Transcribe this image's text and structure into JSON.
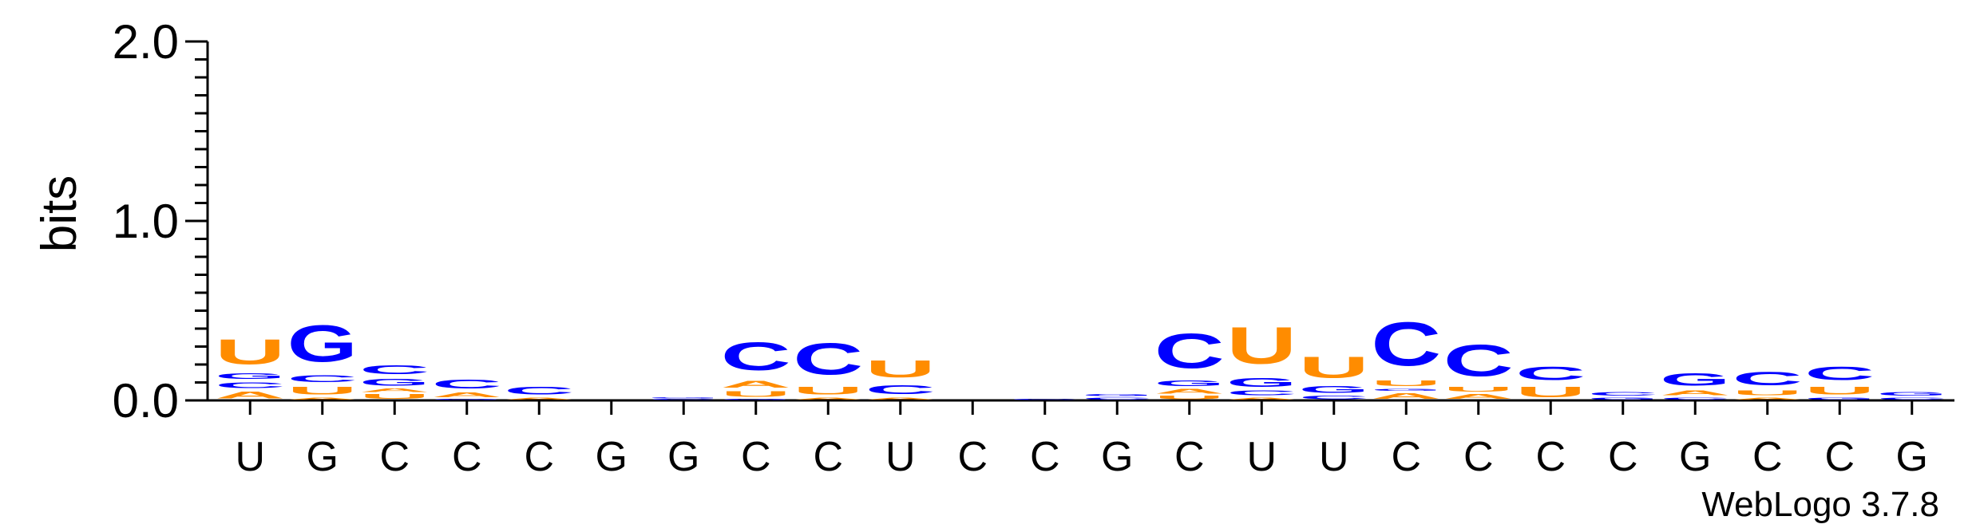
{
  "chart_data": {
    "type": "sequence-logo",
    "ylabel": "bits",
    "ylim": [
      0,
      2.0
    ],
    "yticks": [
      "0.0",
      "1.0",
      "2.0"
    ],
    "colors": {
      "U": "#ff8c00",
      "A": "#ff8c00",
      "C": "#0000ff",
      "G": "#0000ff"
    },
    "positions": [
      {
        "label": "U",
        "stack": [
          [
            "A",
            0.06
          ],
          [
            "C",
            0.05
          ],
          [
            "G",
            0.05
          ],
          [
            "U",
            0.22
          ]
        ]
      },
      {
        "label": "G",
        "stack": [
          [
            "A",
            0.02
          ],
          [
            "U",
            0.07
          ],
          [
            "C",
            0.06
          ],
          [
            "G",
            0.33
          ]
        ]
      },
      {
        "label": "C",
        "stack": [
          [
            "U",
            0.04
          ],
          [
            "A",
            0.03
          ],
          [
            "G",
            0.06
          ],
          [
            "C",
            0.08
          ]
        ]
      },
      {
        "label": "C",
        "stack": [
          [
            "G",
            0.01
          ],
          [
            "A",
            0.04
          ],
          [
            "C",
            0.08
          ]
        ]
      },
      {
        "label": "C",
        "stack": [
          [
            "A",
            0.02
          ],
          [
            "C",
            0.07
          ]
        ]
      },
      {
        "label": "G",
        "stack": []
      },
      {
        "label": "G",
        "stack": [
          [
            "C",
            0.01
          ],
          [
            "G",
            0.01
          ]
        ]
      },
      {
        "label": "C",
        "stack": [
          [
            "G",
            0.01
          ],
          [
            "U",
            0.05
          ],
          [
            "A",
            0.06
          ],
          [
            "C",
            0.25
          ]
        ]
      },
      {
        "label": "C",
        "stack": [
          [
            "A",
            0.02
          ],
          [
            "U",
            0.07
          ],
          [
            "C",
            0.28
          ]
        ]
      },
      {
        "label": "U",
        "stack": [
          [
            "A",
            0.02
          ],
          [
            "C",
            0.08
          ],
          [
            "U",
            0.15
          ]
        ]
      },
      {
        "label": "C",
        "stack": []
      },
      {
        "label": "C",
        "stack": [
          [
            "C",
            0.01
          ]
        ]
      },
      {
        "label": "G",
        "stack": [
          [
            "C",
            0.02
          ],
          [
            "G",
            0.02
          ]
        ]
      },
      {
        "label": "C",
        "stack": [
          [
            "U",
            0.03
          ],
          [
            "A",
            0.04
          ],
          [
            "G",
            0.05
          ],
          [
            "C",
            0.31
          ]
        ]
      },
      {
        "label": "U",
        "stack": [
          [
            "A",
            0.02
          ],
          [
            "C",
            0.04
          ],
          [
            "G",
            0.08
          ],
          [
            "U",
            0.33
          ]
        ]
      },
      {
        "label": "U",
        "stack": [
          [
            "C",
            0.03
          ],
          [
            "G",
            0.06
          ],
          [
            "U",
            0.19
          ]
        ]
      },
      {
        "label": "C",
        "stack": [
          [
            "A",
            0.05
          ],
          [
            "G",
            0.02
          ],
          [
            "U",
            0.05
          ],
          [
            "C",
            0.39
          ]
        ]
      },
      {
        "label": "C",
        "stack": [
          [
            "A",
            0.04
          ],
          [
            "U",
            0.04
          ],
          [
            "C",
            0.28
          ]
        ]
      },
      {
        "label": "C",
        "stack": [
          [
            "U",
            0.09
          ],
          [
            "C",
            0.12
          ]
        ]
      },
      {
        "label": "C",
        "stack": [
          [
            "G",
            0.02
          ],
          [
            "C",
            0.03
          ]
        ]
      },
      {
        "label": "G",
        "stack": [
          [
            "C",
            0.02
          ],
          [
            "A",
            0.04
          ],
          [
            "G",
            0.11
          ]
        ]
      },
      {
        "label": "C",
        "stack": [
          [
            "A",
            0.02
          ],
          [
            "U",
            0.04
          ],
          [
            "C",
            0.12
          ]
        ]
      },
      {
        "label": "C",
        "stack": [
          [
            "G",
            0.02
          ],
          [
            "U",
            0.07
          ],
          [
            "C",
            0.12
          ]
        ]
      },
      {
        "label": "G",
        "stack": [
          [
            "C",
            0.02
          ],
          [
            "G",
            0.03
          ]
        ]
      }
    ]
  },
  "credit": "WebLogo 3.7.8"
}
